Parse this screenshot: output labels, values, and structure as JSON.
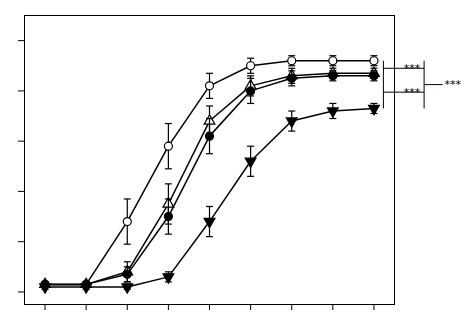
{
  "chart_data": {
    "type": "line",
    "x": [
      1,
      2,
      3,
      4,
      5,
      6,
      7,
      8,
      9
    ],
    "series": [
      {
        "values": [
          3,
          3,
          28,
          58,
          82,
          90,
          92,
          92,
          92
        ],
        "errors": [
          1,
          1,
          9,
          9,
          5,
          3,
          2,
          2,
          2
        ],
        "marker": "circle-open",
        "color": "black"
      },
      {
        "values": [
          3,
          3,
          8,
          35,
          68,
          82,
          86,
          87,
          87
        ],
        "errors": [
          1,
          1,
          4,
          8,
          6,
          4,
          3,
          2,
          2
        ],
        "marker": "triangle-open",
        "color": "black"
      },
      {
        "values": [
          3,
          3,
          7,
          30,
          62,
          80,
          85,
          86,
          86
        ],
        "errors": [
          1,
          1,
          3,
          7,
          7,
          5,
          3,
          2,
          2
        ],
        "marker": "circle",
        "color": "black"
      },
      {
        "values": [
          2,
          2,
          2,
          6,
          28,
          52,
          68,
          72,
          73
        ],
        "errors": [
          1,
          1,
          1,
          2,
          6,
          6,
          4,
          3,
          2
        ],
        "marker": "triangle-down",
        "color": "black"
      }
    ],
    "xlim": [
      0.5,
      9.5
    ],
    "ylim": [
      -5,
      110
    ],
    "xticks": [
      1,
      2,
      3,
      4,
      5,
      6,
      7,
      8,
      9
    ],
    "yticks": [
      0,
      20,
      40,
      60,
      80,
      100
    ],
    "tick_labels": false,
    "annotations": [
      {
        "text": "***",
        "y": [
          86,
          92
        ]
      },
      {
        "text": "***",
        "y": [
          73,
          86
        ]
      },
      {
        "text": "***",
        "y": [
          73,
          92
        ]
      }
    ]
  }
}
